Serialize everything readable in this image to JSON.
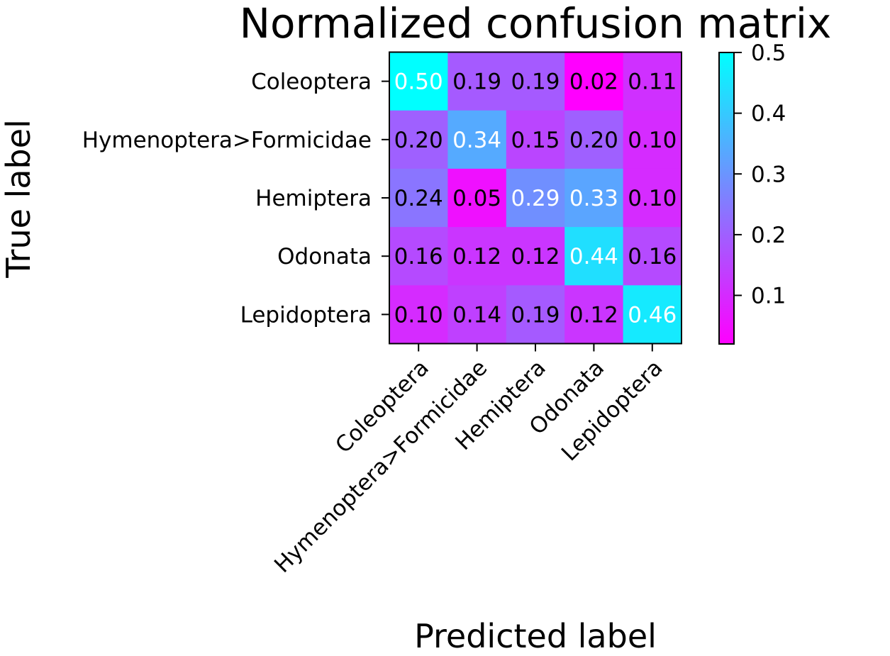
{
  "chart_data": {
    "type": "heatmap",
    "title": "Normalized confusion matrix",
    "xlabel": "Predicted label",
    "ylabel": "True label",
    "x_categories": [
      "Coleoptera",
      "Hymenoptera>Formicidae",
      "Hemiptera",
      "Odonata",
      "Lepidoptera"
    ],
    "y_categories": [
      "Coleoptera",
      "Hymenoptera>Formicidae",
      "Hemiptera",
      "Odonata",
      "Lepidoptera"
    ],
    "values": [
      [
        0.5,
        0.19,
        0.19,
        0.02,
        0.11
      ],
      [
        0.2,
        0.34,
        0.15,
        0.2,
        0.1
      ],
      [
        0.24,
        0.05,
        0.29,
        0.33,
        0.1
      ],
      [
        0.16,
        0.12,
        0.12,
        0.44,
        0.16
      ],
      [
        0.1,
        0.14,
        0.19,
        0.12,
        0.46
      ]
    ],
    "colormap": "cool_r",
    "color_low": "#ff00ff",
    "color_high": "#00ffff",
    "text_color_dark": "#000000",
    "text_color_light": "#ffffff",
    "colorbar": {
      "min": 0.02,
      "max": 0.5,
      "ticks": [
        "0.1",
        "0.2",
        "0.3",
        "0.4",
        "0.5"
      ]
    }
  }
}
